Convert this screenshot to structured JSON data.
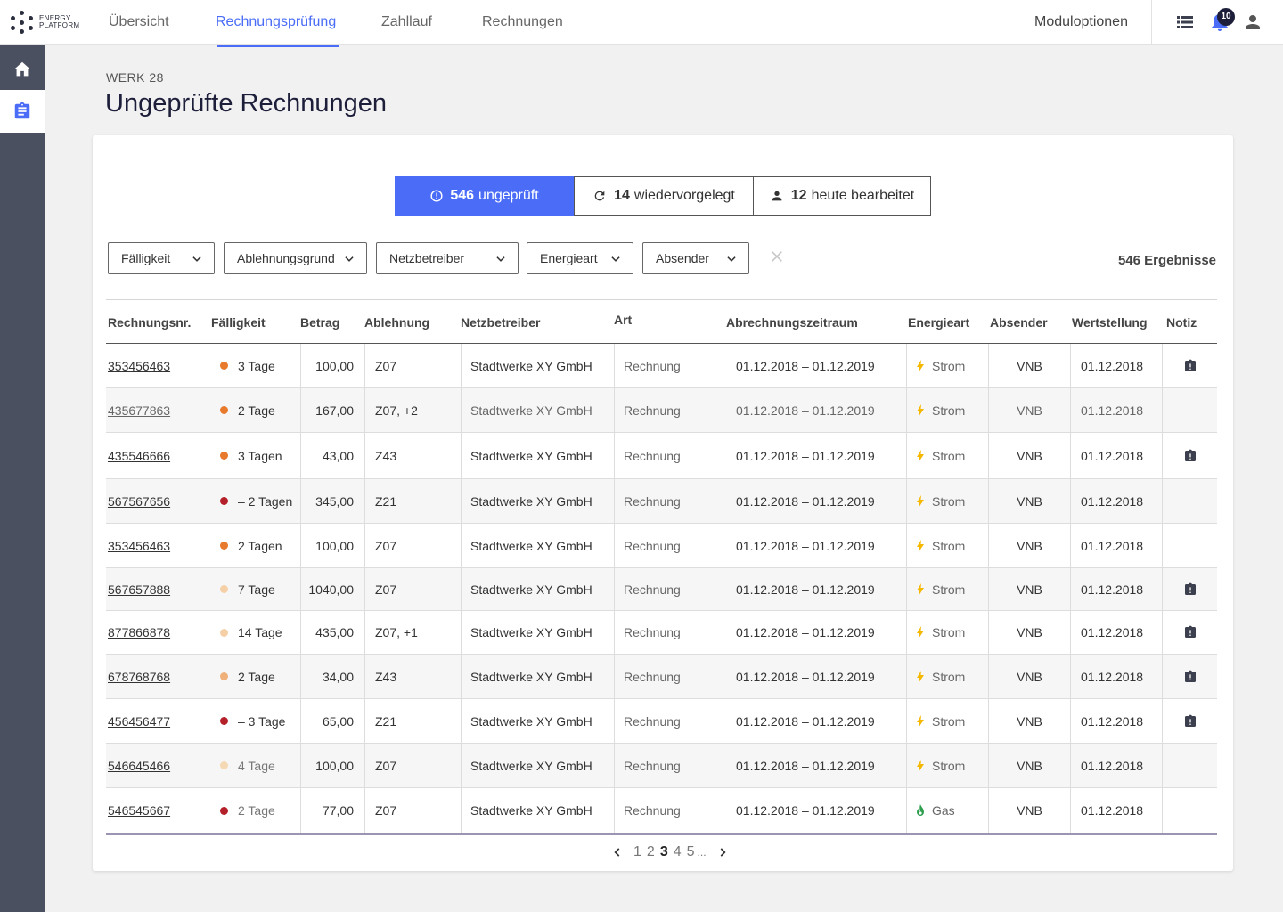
{
  "brand": {
    "line1": "ENERGY",
    "line2": "PLATFORM"
  },
  "nav": {
    "items": [
      {
        "label": "Übersicht"
      },
      {
        "label": "Rechnungsprüfung",
        "active": true
      },
      {
        "label": "Zahllauf"
      },
      {
        "label": "Rechnungen"
      }
    ],
    "module_options": "Moduloptionen",
    "notification_count": "10"
  },
  "sidebar": {
    "items": [
      "home-icon",
      "clipboard-icon"
    ]
  },
  "page": {
    "werk": "WERK 28",
    "title": "Ungeprüfte Rechnungen"
  },
  "segments": [
    {
      "count": "546",
      "label": "ungeprüft",
      "icon": "clock-icon",
      "active": true
    },
    {
      "count": "14",
      "label": "wiedervorgelegt",
      "icon": "refresh-icon"
    },
    {
      "count": "12",
      "label": "heute bearbeitet",
      "icon": "person-icon"
    }
  ],
  "filters": [
    "Fälligkeit",
    "Ablehnungsgrund",
    "Netzbetreiber",
    "Energieart",
    "Absender"
  ],
  "results_label": "546 Ergebnisse",
  "table": {
    "headers": [
      "Rechnungsnr.",
      "Fälligkeit",
      "Betrag",
      "Ablehnung",
      "Netzbetreiber",
      "Art",
      "Abrechnungszeitraum",
      "Energieart",
      "Absender",
      "Wertstellung",
      "Notiz"
    ],
    "rows": [
      {
        "nr": "353456463",
        "due": "3 Tage",
        "dot": "#e87a2d",
        "amount": "100,00",
        "reject": "Z07",
        "operator": "Stadtwerke XY GmbH",
        "type": "Rechnung",
        "period": "01.12.2018 – 01.12.2019",
        "energy": "Strom",
        "energy_icon": "bolt-icon",
        "sender": "VNB",
        "value_date": "01.12.2018",
        "note": true,
        "dim": false
      },
      {
        "nr": "435677863",
        "due": "2 Tage",
        "dot": "#e87a2d",
        "amount": "167,00",
        "reject": "Z07, +2",
        "operator": "Stadtwerke XY GmbH",
        "type": "Rechnung",
        "period": "01.12.2018 – 01.12.2019",
        "energy": "Strom",
        "energy_icon": "bolt-icon",
        "sender": "VNB",
        "value_date": "01.12.2018",
        "note": false,
        "dim": true
      },
      {
        "nr": "435546666",
        "due": "3 Tagen",
        "dot": "#e87a2d",
        "amount": "43,00",
        "reject": "Z43",
        "operator": "Stadtwerke XY GmbH",
        "type": "Rechnung",
        "period": "01.12.2018 – 01.12.2019",
        "energy": "Strom",
        "energy_icon": "bolt-icon",
        "sender": "VNB",
        "value_date": "01.12.2018",
        "note": true,
        "dim": false
      },
      {
        "nr": "567567656",
        "due": "– 2 Tagen",
        "dot": "#b3202a",
        "amount": "345,00",
        "reject": "Z21",
        "operator": "Stadtwerke XY GmbH",
        "type": "Rechnung",
        "period": "01.12.2018 – 01.12.2019",
        "energy": "Strom",
        "energy_icon": "bolt-icon",
        "sender": "VNB",
        "value_date": "01.12.2018",
        "note": false,
        "dim": false
      },
      {
        "nr": "353456463",
        "due": "2 Tagen",
        "dot": "#e87a2d",
        "amount": "100,00",
        "reject": "Z07",
        "operator": "Stadtwerke XY GmbH",
        "type": "Rechnung",
        "period": "01.12.2018 – 01.12.2019",
        "energy": "Strom",
        "energy_icon": "bolt-icon",
        "sender": "VNB",
        "value_date": "01.12.2018",
        "note": false,
        "dim": false
      },
      {
        "nr": "567657888",
        "due": "7 Tage",
        "dot": "#f5d0a6",
        "amount": "1040,00",
        "reject": "Z07",
        "operator": "Stadtwerke XY GmbH",
        "type": "Rechnung",
        "period": "01.12.2018 – 01.12.2019",
        "energy": "Strom",
        "energy_icon": "bolt-icon",
        "sender": "VNB",
        "value_date": "01.12.2018",
        "note": true,
        "dim": false
      },
      {
        "nr": "877866878",
        "due": "14 Tage",
        "dot": "#f5d0a6",
        "amount": "435,00",
        "reject": "Z07, +1",
        "operator": "Stadtwerke XY GmbH",
        "type": "Rechnung",
        "period": "01.12.2018 – 01.12.2019",
        "energy": "Strom",
        "energy_icon": "bolt-icon",
        "sender": "VNB",
        "value_date": "01.12.2018",
        "note": true,
        "dim": false
      },
      {
        "nr": "678768768",
        "due": "2 Tage",
        "dot": "#f0b07a",
        "amount": "34,00",
        "reject": "Z43",
        "operator": "Stadtwerke XY GmbH",
        "type": "Rechnung",
        "period": "01.12.2018 – 01.12.2019",
        "energy": "Strom",
        "energy_icon": "bolt-icon",
        "sender": "VNB",
        "value_date": "01.12.2018",
        "note": true,
        "dim": false
      },
      {
        "nr": "456456477",
        "due": "– 3 Tage",
        "dot": "#b3202a",
        "amount": "65,00",
        "reject": "Z21",
        "operator": "Stadtwerke XY GmbH",
        "type": "Rechnung",
        "period": "01.12.2018 – 01.12.2019",
        "energy": "Strom",
        "energy_icon": "bolt-icon",
        "sender": "VNB",
        "value_date": "01.12.2018",
        "note": true,
        "dim": false
      },
      {
        "nr": "546645466",
        "due": "4 Tage",
        "dot": "#f5d9b5",
        "amount": "100,00",
        "reject": "Z07",
        "operator": "Stadtwerke XY GmbH",
        "type": "Rechnung",
        "period": "01.12.2018 – 01.12.2019",
        "energy": "Strom",
        "energy_icon": "bolt-icon",
        "sender": "VNB",
        "value_date": "01.12.2018",
        "note": false,
        "dim": false,
        "due_dim": true
      },
      {
        "nr": "546545667",
        "due": "2 Tage",
        "dot": "#b3202a",
        "amount": "77,00",
        "reject": "Z07",
        "operator": "Stadtwerke XY GmbH",
        "type": "Rechnung",
        "period": "01.12.2018 – 01.12.2019",
        "energy": "Gas",
        "energy_icon": "flame-icon",
        "sender": "VNB",
        "value_date": "01.12.2018",
        "note": false,
        "dim": false,
        "due_dim": true
      }
    ]
  },
  "pagination": {
    "pages": [
      "1",
      "2",
      "3",
      "4",
      "5"
    ],
    "current": "3",
    "ellipsis": "..."
  },
  "colors": {
    "accent": "#4a6cf7",
    "sidebar": "#4a5060",
    "bolt": "#f5b800",
    "flame": "#2e9e4f"
  }
}
